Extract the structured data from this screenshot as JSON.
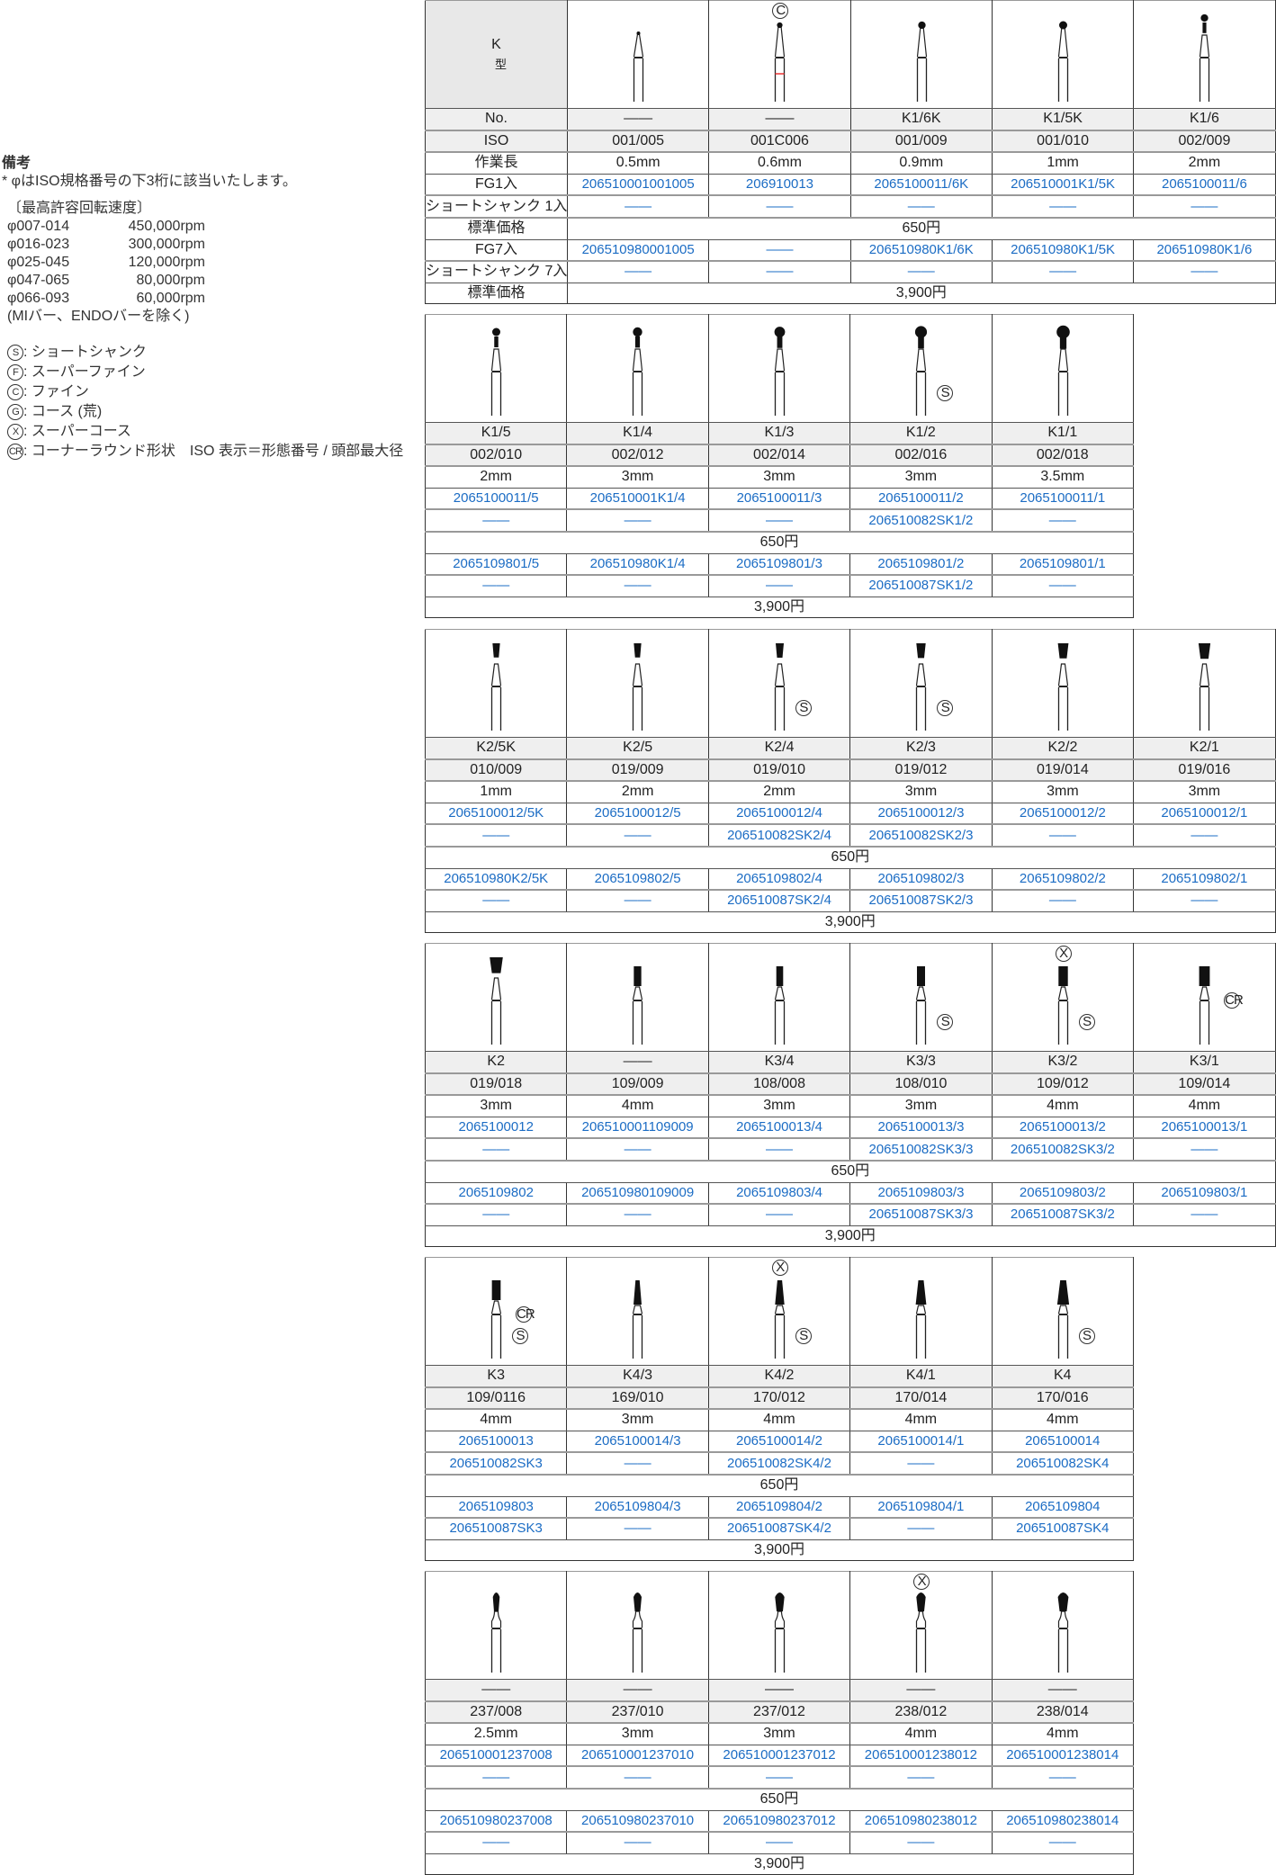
{
  "notes": {
    "title": "備考",
    "iso_note": "* φはISO規格番号の下3桁に該当いたします。",
    "speed_title": "〔最高許容回転速度〕",
    "speeds": [
      {
        "range": "φ007-014",
        "rpm": "450,000rpm"
      },
      {
        "range": "φ016-023",
        "rpm": "300,000rpm"
      },
      {
        "range": "φ025-045",
        "rpm": "120,000rpm"
      },
      {
        "range": "φ047-065",
        "rpm": "80,000rpm"
      },
      {
        "range": "φ066-093",
        "rpm": "60,000rpm"
      }
    ],
    "speed_exclusion": "(MIバー、ENDOバーを除く)",
    "legend": [
      {
        "symbol": "S",
        "text": ": ショートシャンク"
      },
      {
        "symbol": "F",
        "text": ": スーパーファイン"
      },
      {
        "symbol": "C",
        "text": ": ファイン"
      },
      {
        "symbol": "G",
        "text": ": コース (荒)"
      },
      {
        "symbol": "X",
        "text": ": スーパーコース"
      },
      {
        "symbol": "CR",
        "text": ": コーナーラウンド形状　ISO 表示＝形態番号 / 頭部最大径"
      }
    ]
  },
  "labels": {
    "type_k": "K",
    "type_kata": "型",
    "no": "No.",
    "iso": "ISO",
    "length": "作業長",
    "fg1": "FG1入",
    "ss1": "ショートシャンク 1入",
    "price1": "標準価格",
    "fg7": "FG7入",
    "ss7": "ショートシャンク 7入",
    "price7": "標準価格"
  },
  "colors": {
    "code_text": "#1b6cc4",
    "header_bg": "#efefef",
    "fine_band": "#e33"
  },
  "tables": [
    {
      "price1": "650円",
      "price7": "3,900円",
      "products": [
        {
          "no": "——",
          "iso": "001/005",
          "length": "0.5mm",
          "fg1": "206510001001005",
          "ss1": "——",
          "fg7": "206510980001005",
          "ss7": "——",
          "shape": "taper",
          "marks": []
        },
        {
          "no": "——",
          "iso": "001C006",
          "length": "0.6mm",
          "fg1": "206910013",
          "ss1": "——",
          "fg7": "——",
          "ss7": "——",
          "shape": "taper-ball",
          "marks": [
            {
              "symbol": "C",
              "pos": "top"
            }
          ],
          "band": "fine"
        },
        {
          "no": "K1/6K",
          "iso": "001/009",
          "length": "0.9mm",
          "fg1": "2065100011/6K",
          "ss1": "——",
          "fg7": "206510980K1/6K",
          "ss7": "——",
          "shape": "taper-ball",
          "marks": []
        },
        {
          "no": "K1/5K",
          "iso": "001/010",
          "length": "1mm",
          "fg1": "206510001K1/5K",
          "ss1": "——",
          "fg7": "206510980K1/5K",
          "ss7": "——",
          "shape": "taper-ball",
          "marks": []
        },
        {
          "no": "K1/6",
          "iso": "002/009",
          "length": "2mm",
          "fg1": "2065100011/6",
          "ss1": "——",
          "fg7": "206510980K1/6",
          "ss7": "——",
          "shape": "ball",
          "marks": []
        }
      ]
    },
    {
      "price1": "650円",
      "price7": "3,900円",
      "products": [
        {
          "no": "K1/5",
          "iso": "002/010",
          "length": "2mm",
          "fg1": "2065100011/5",
          "ss1": "——",
          "fg7": "2065109801/5",
          "ss7": "——",
          "shape": "ball",
          "marks": []
        },
        {
          "no": "K1/4",
          "iso": "002/012",
          "length": "3mm",
          "fg1": "206510001K1/4",
          "ss1": "——",
          "fg7": "206510980K1/4",
          "ss7": "——",
          "shape": "ball",
          "marks": []
        },
        {
          "no": "K1/3",
          "iso": "002/014",
          "length": "3mm",
          "fg1": "2065100011/3",
          "ss1": "——",
          "fg7": "2065109801/3",
          "ss7": "——",
          "shape": "ball",
          "marks": []
        },
        {
          "no": "K1/2",
          "iso": "002/016",
          "length": "3mm",
          "fg1": "2065100011/2",
          "ss1": "206510082SK1/2",
          "fg7": "2065109801/2",
          "ss7": "206510087SK1/2",
          "shape": "ball",
          "marks": [
            {
              "symbol": "S",
              "pos": "side"
            }
          ]
        },
        {
          "no": "K1/1",
          "iso": "002/018",
          "length": "3.5mm",
          "fg1": "2065100011/1",
          "ss1": "——",
          "fg7": "2065109801/1",
          "ss7": "——",
          "shape": "ball",
          "marks": []
        }
      ]
    },
    {
      "price1": "650円",
      "price7": "3,900円",
      "products": [
        {
          "no": "K2/5K",
          "iso": "010/009",
          "length": "1mm",
          "fg1": "2065100012/5K",
          "ss1": "——",
          "fg7": "206510980K2/5K",
          "ss7": "——",
          "shape": "inverted-cone",
          "marks": []
        },
        {
          "no": "K2/5",
          "iso": "019/009",
          "length": "2mm",
          "fg1": "2065100012/5",
          "ss1": "——",
          "fg7": "2065109802/5",
          "ss7": "——",
          "shape": "inverted-cone",
          "marks": []
        },
        {
          "no": "K2/4",
          "iso": "019/010",
          "length": "2mm",
          "fg1": "2065100012/4",
          "ss1": "206510082SK2/4",
          "fg7": "2065109802/4",
          "ss7": "206510087SK2/4",
          "shape": "inverted-cone",
          "marks": [
            {
              "symbol": "S",
              "pos": "side"
            }
          ]
        },
        {
          "no": "K2/3",
          "iso": "019/012",
          "length": "3mm",
          "fg1": "2065100012/3",
          "ss1": "206510082SK2/3",
          "fg7": "2065109802/3",
          "ss7": "206510087SK2/3",
          "shape": "inverted-cone",
          "marks": [
            {
              "symbol": "S",
              "pos": "side"
            }
          ]
        },
        {
          "no": "K2/2",
          "iso": "019/014",
          "length": "3mm",
          "fg1": "2065100012/2",
          "ss1": "——",
          "fg7": "2065109802/2",
          "ss7": "——",
          "shape": "inverted-cone",
          "marks": []
        },
        {
          "no": "K2/1",
          "iso": "019/016",
          "length": "3mm",
          "fg1": "2065100012/1",
          "ss1": "——",
          "fg7": "2065109802/1",
          "ss7": "——",
          "shape": "inverted-cone",
          "marks": []
        }
      ]
    },
    {
      "price1": "650円",
      "price7": "3,900円",
      "products": [
        {
          "no": "K2",
          "iso": "019/018",
          "length": "3mm",
          "fg1": "2065100012",
          "ss1": "——",
          "fg7": "2065109802",
          "ss7": "——",
          "shape": "inverted-cone",
          "marks": []
        },
        {
          "no": "——",
          "iso": "109/009",
          "length": "4mm",
          "fg1": "206510001109009",
          "ss1": "——",
          "fg7": "206510980109009",
          "ss7": "——",
          "shape": "cylinder",
          "marks": []
        },
        {
          "no": "K3/4",
          "iso": "108/008",
          "length": "3mm",
          "fg1": "2065100013/4",
          "ss1": "——",
          "fg7": "2065109803/4",
          "ss7": "——",
          "shape": "cylinder",
          "marks": []
        },
        {
          "no": "K3/3",
          "iso": "108/010",
          "length": "3mm",
          "fg1": "2065100013/3",
          "ss1": "206510082SK3/3",
          "fg7": "2065109803/3",
          "ss7": "206510087SK3/3",
          "shape": "cylinder",
          "marks": [
            {
              "symbol": "S",
              "pos": "side"
            }
          ]
        },
        {
          "no": "K3/2",
          "iso": "109/012",
          "length": "4mm",
          "fg1": "2065100013/2",
          "ss1": "206510082SK3/2",
          "fg7": "2065109803/2",
          "ss7": "206510087SK3/2",
          "shape": "cylinder",
          "marks": [
            {
              "symbol": "X",
              "pos": "top"
            },
            {
              "symbol": "S",
              "pos": "side"
            }
          ]
        },
        {
          "no": "K3/1",
          "iso": "109/014",
          "length": "4mm",
          "fg1": "2065100013/1",
          "ss1": "——",
          "fg7": "2065109803/1",
          "ss7": "——",
          "shape": "cylinder",
          "marks": [
            {
              "symbol": "CR",
              "pos": "side-high"
            }
          ]
        }
      ]
    },
    {
      "price1": "650円",
      "price7": "3,900円",
      "products": [
        {
          "no": "K3",
          "iso": "109/0116",
          "length": "4mm",
          "fg1": "2065100013",
          "ss1": "206510082SK3",
          "fg7": "2065109803",
          "ss7": "206510087SK3",
          "shape": "cylinder",
          "marks": [
            {
              "symbol": "CR",
              "pos": "side-high"
            },
            {
              "symbol": "S",
              "pos": "side"
            }
          ]
        },
        {
          "no": "K4/3",
          "iso": "169/010",
          "length": "3mm",
          "fg1": "2065100014/3",
          "ss1": "——",
          "fg7": "2065109804/3",
          "ss7": "——",
          "shape": "taper-fissure",
          "marks": []
        },
        {
          "no": "K4/2",
          "iso": "170/012",
          "length": "4mm",
          "fg1": "2065100014/2",
          "ss1": "206510082SK4/2",
          "fg7": "2065109804/2",
          "ss7": "206510087SK4/2",
          "shape": "taper-fissure",
          "marks": [
            {
              "symbol": "X",
              "pos": "top"
            },
            {
              "symbol": "S",
              "pos": "side"
            }
          ]
        },
        {
          "no": "K4/1",
          "iso": "170/014",
          "length": "4mm",
          "fg1": "2065100014/1",
          "ss1": "——",
          "fg7": "2065109804/1",
          "ss7": "——",
          "shape": "taper-fissure",
          "marks": []
        },
        {
          "no": "K4",
          "iso": "170/016",
          "length": "4mm",
          "fg1": "2065100014",
          "ss1": "206510082SK4",
          "fg7": "2065109804",
          "ss7": "206510087SK4",
          "shape": "taper-fissure",
          "marks": [
            {
              "symbol": "S",
              "pos": "side"
            }
          ]
        }
      ]
    },
    {
      "price1": "650円",
      "price7": "3,900円",
      "products": [
        {
          "no": "——",
          "iso": "237/008",
          "length": "2.5mm",
          "fg1": "206510001237008",
          "ss1": "——",
          "fg7": "206510980237008",
          "ss7": "——",
          "shape": "pear",
          "marks": []
        },
        {
          "no": "——",
          "iso": "237/010",
          "length": "3mm",
          "fg1": "206510001237010",
          "ss1": "——",
          "fg7": "206510980237010",
          "ss7": "——",
          "shape": "pear",
          "marks": []
        },
        {
          "no": "——",
          "iso": "237/012",
          "length": "3mm",
          "fg1": "206510001237012",
          "ss1": "——",
          "fg7": "206510980237012",
          "ss7": "——",
          "shape": "pear",
          "marks": []
        },
        {
          "no": "——",
          "iso": "238/012",
          "length": "4mm",
          "fg1": "206510001238012",
          "ss1": "——",
          "fg7": "206510980238012",
          "ss7": "——",
          "shape": "pear",
          "marks": [
            {
              "symbol": "X",
              "pos": "top"
            }
          ]
        },
        {
          "no": "——",
          "iso": "238/014",
          "length": "4mm",
          "fg1": "206510001238014",
          "ss1": "——",
          "fg7": "206510980238014",
          "ss7": "——",
          "shape": "pear",
          "marks": []
        }
      ]
    }
  ]
}
